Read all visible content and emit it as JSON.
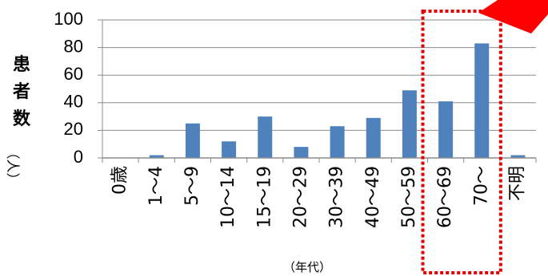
{
  "chart_data": {
    "type": "bar",
    "categories": [
      "0歳",
      "1～4",
      "5～9",
      "10～14",
      "15～19",
      "20～29",
      "30～39",
      "40～49",
      "50～59",
      "60～69",
      "70～",
      "不明"
    ],
    "values": [
      0,
      2,
      25,
      12,
      30,
      8,
      23,
      29,
      49,
      41,
      83,
      2
    ],
    "ylim": [
      0,
      100
    ],
    "yticks": [
      0,
      20,
      40,
      60,
      80,
      100
    ],
    "ylabel": "患者数",
    "ylabel_unit": "（人）",
    "xlabel": "（年代）",
    "grid": true,
    "bar_color": "#4F81BD",
    "highlight": {
      "categories": [
        "60～69",
        "70～"
      ],
      "box_color": "#E00000",
      "arrow_color": "#FF0000"
    }
  }
}
